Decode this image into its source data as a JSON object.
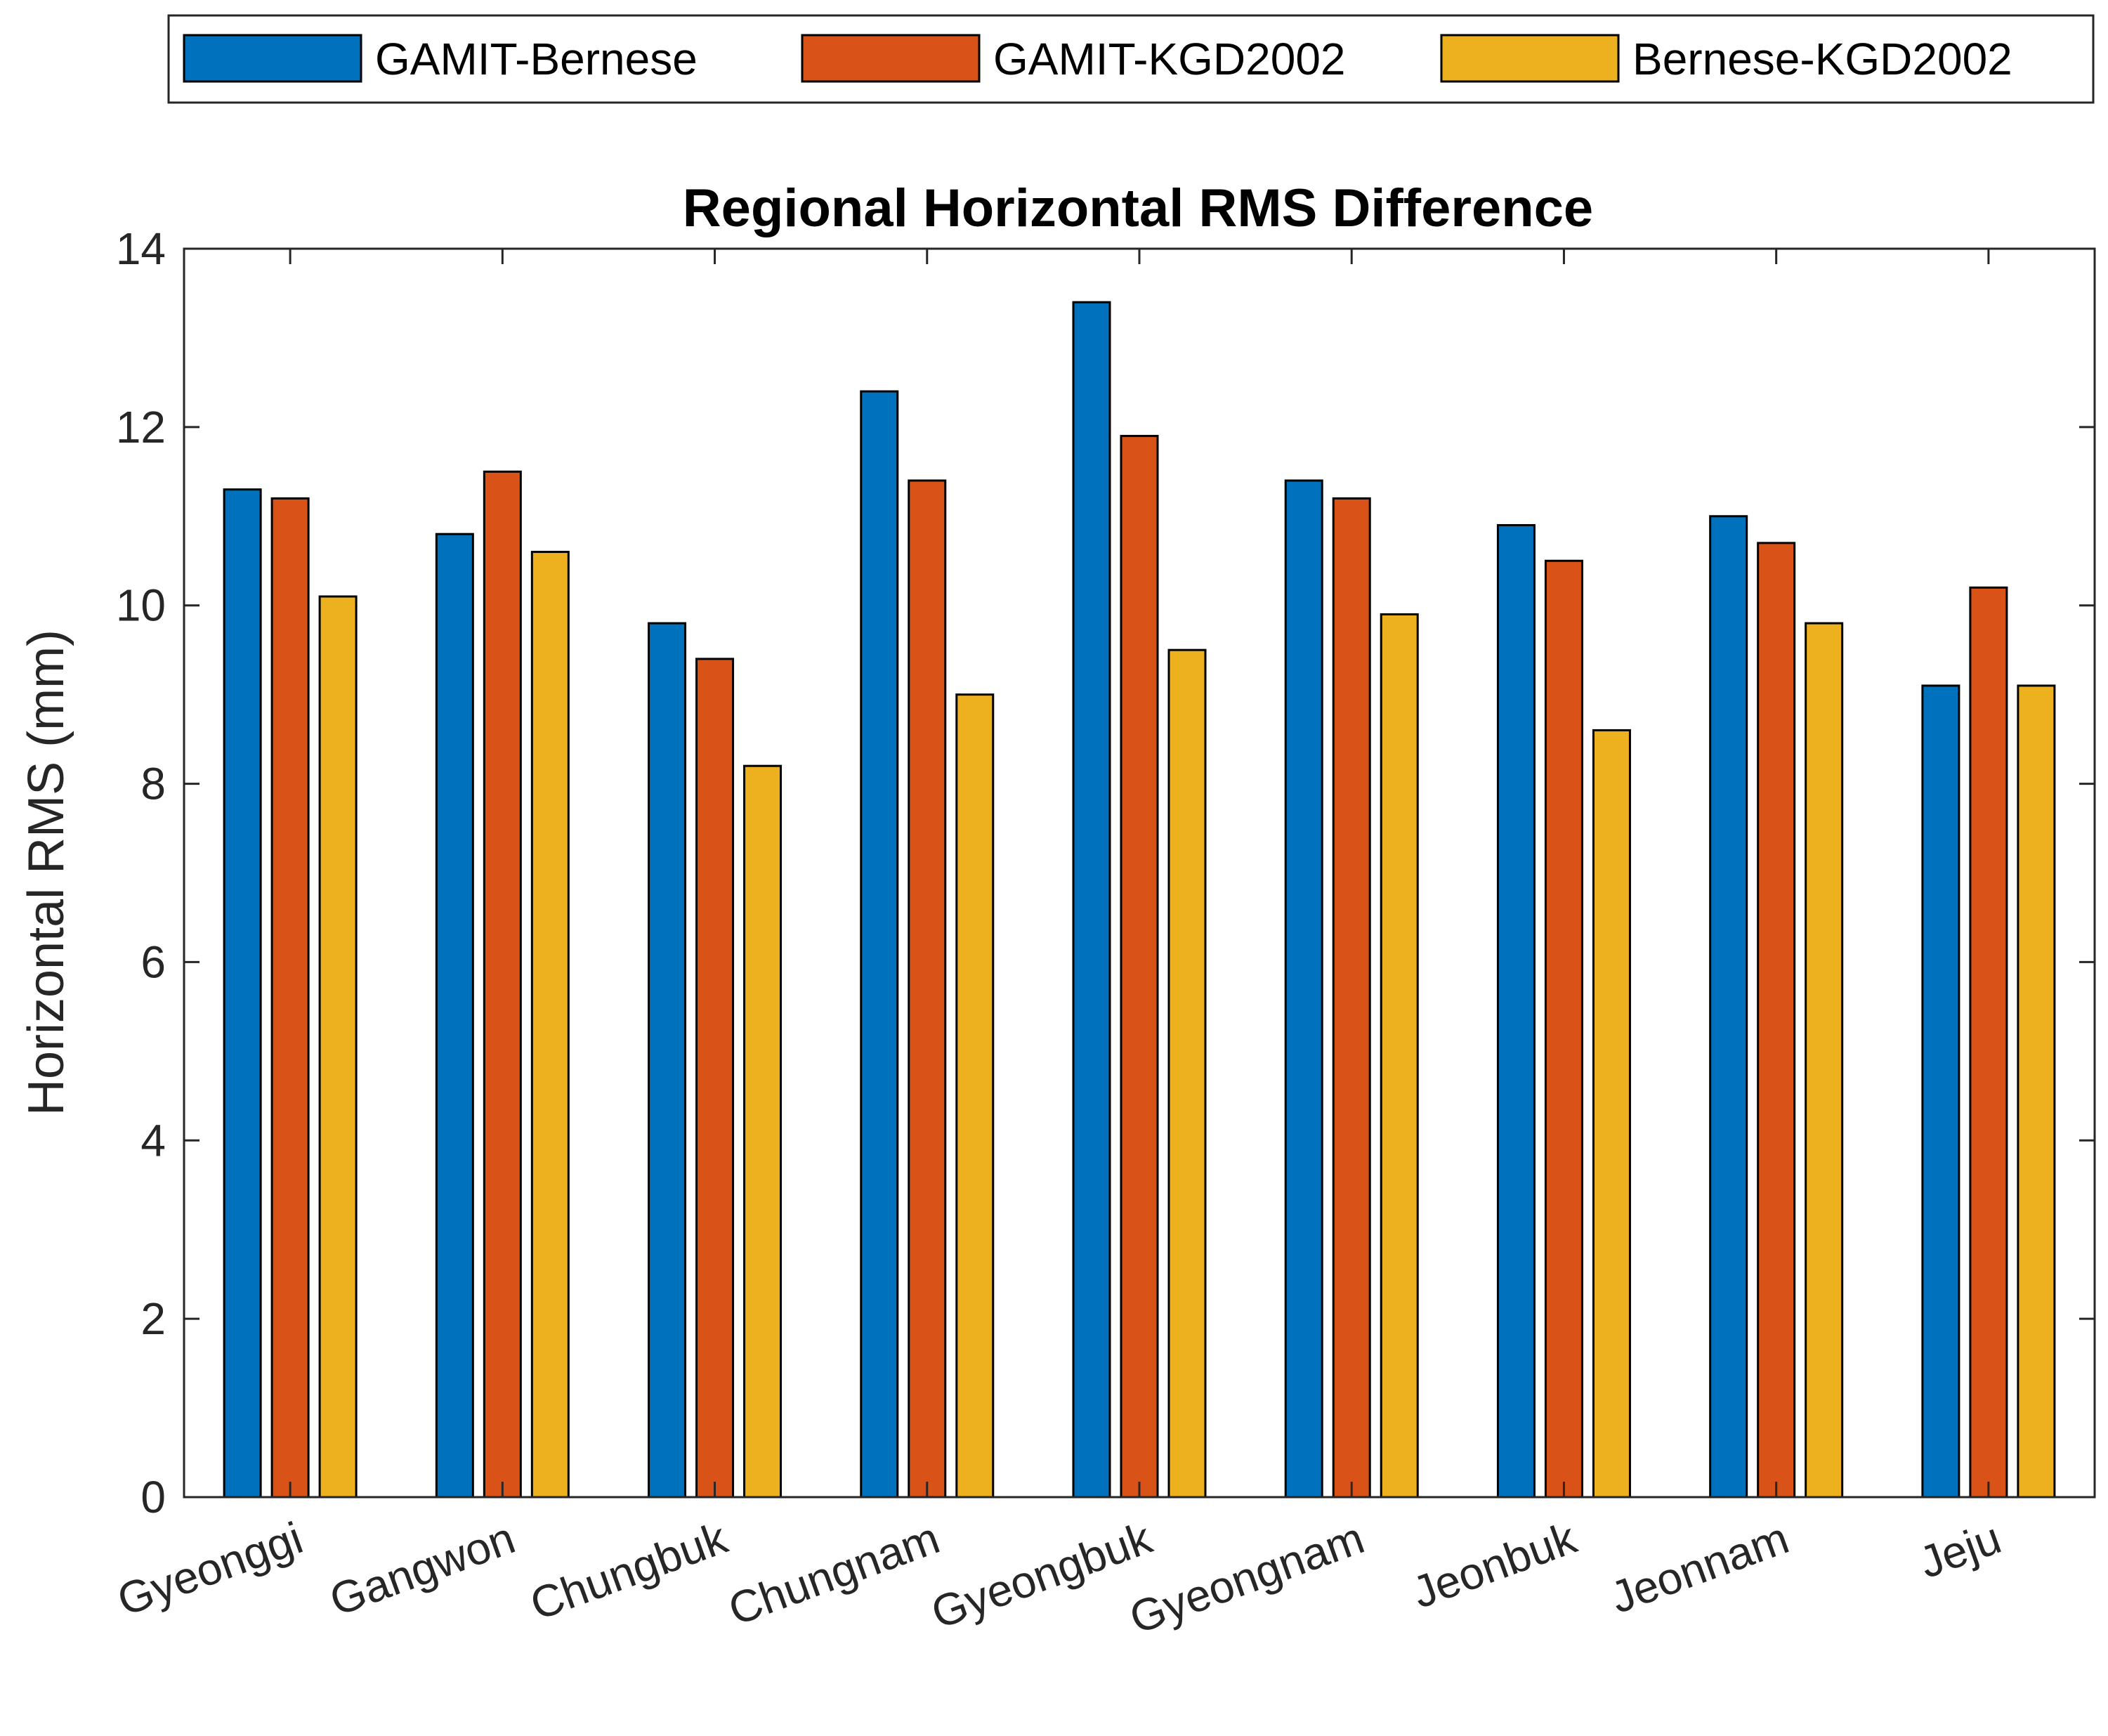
{
  "chart_data": {
    "type": "bar",
    "title": "Regional Horizontal RMS Difference",
    "xlabel": "",
    "ylabel": "Horizontal RMS (mm)",
    "ylim": [
      0,
      14
    ],
    "yticks": [
      "0",
      "2",
      "4",
      "6",
      "8",
      "10",
      "12",
      "14"
    ],
    "grid": false,
    "legend_position": "top",
    "categories": [
      "Gyeonggi",
      "Gangwon",
      "Chungbuk",
      "Chungnam",
      "Gyeongbuk",
      "Gyeongnam",
      "Jeonbuk",
      "Jeonnam",
      "Jeju"
    ],
    "series": [
      {
        "name": "GAMIT-Bernese",
        "color": "#0072BD",
        "values": [
          11.3,
          10.8,
          9.8,
          12.4,
          13.4,
          11.4,
          10.9,
          11.0,
          9.1
        ]
      },
      {
        "name": "GAMIT-KGD2002",
        "color": "#D95319",
        "values": [
          11.2,
          11.5,
          9.4,
          11.4,
          11.9,
          11.2,
          10.5,
          10.7,
          10.2
        ]
      },
      {
        "name": "Bernese-KGD2002",
        "color": "#EDB120",
        "values": [
          10.1,
          10.6,
          8.2,
          9.0,
          9.5,
          9.9,
          8.6,
          9.8,
          9.1
        ]
      }
    ]
  }
}
